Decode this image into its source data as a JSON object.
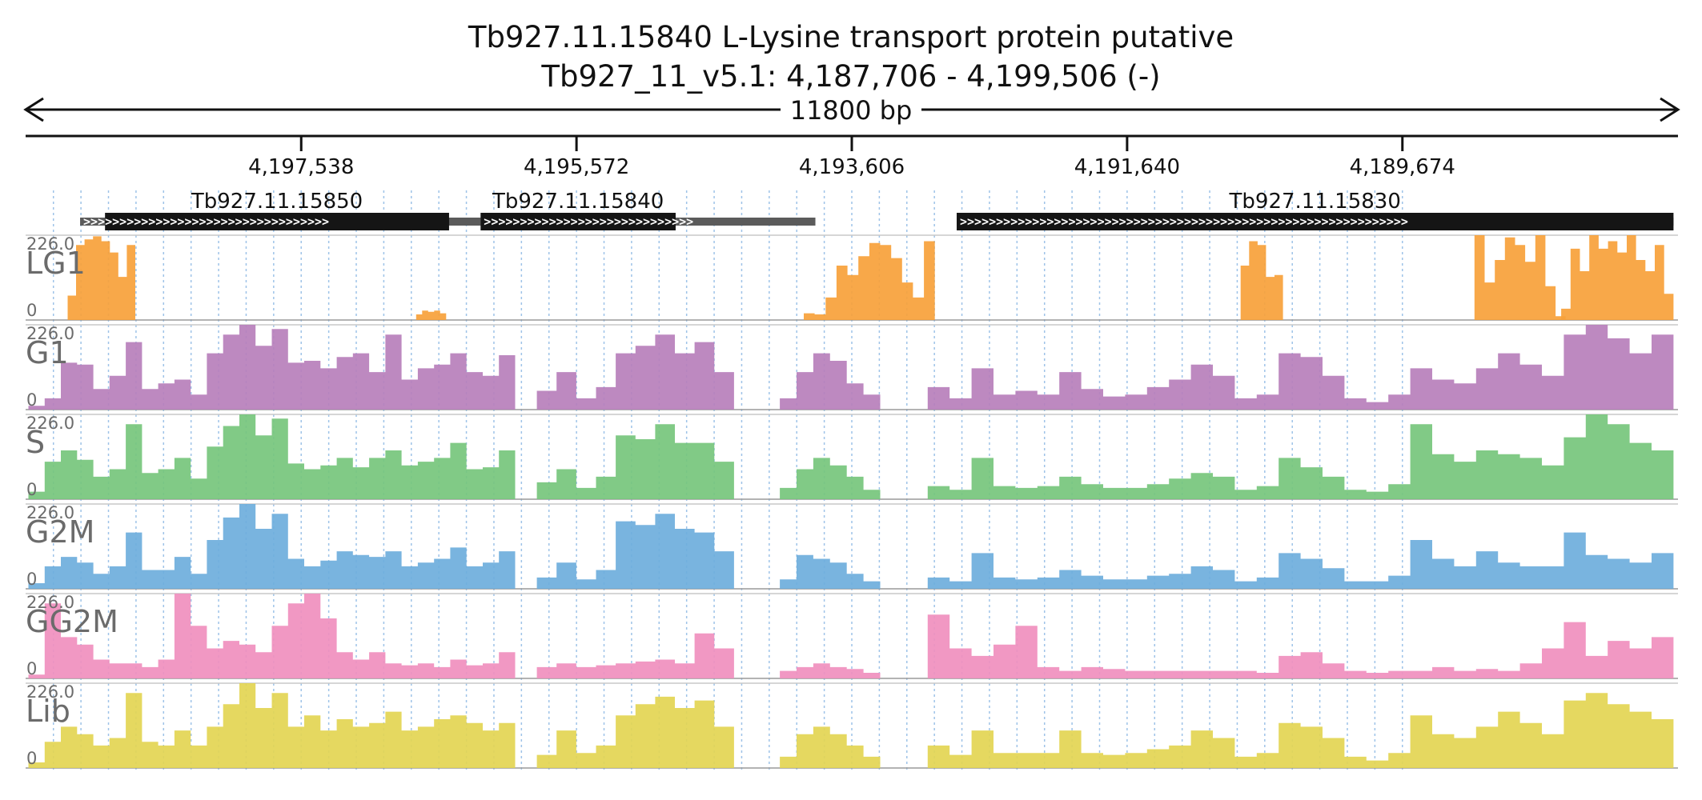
{
  "chart_data": {
    "type": "area",
    "title": "Tb927.11.15840  L-Lysine transport protein  putative",
    "subtitle": "Tb927_11_v5.1: 4,187,706 - 4,199,506 (-)",
    "span_label": "11800 bp",
    "region": {
      "start": 4187706,
      "end": 4199506,
      "strand": "-"
    },
    "x_ticks": [
      {
        "pos": 4197538,
        "label": "4,197,538"
      },
      {
        "pos": 4195572,
        "label": "4,195,572"
      },
      {
        "pos": 4193606,
        "label": "4,193,606"
      },
      {
        "pos": 4191640,
        "label": "4,191,640"
      },
      {
        "pos": 4189674,
        "label": "4,189,674"
      }
    ],
    "genes": [
      {
        "name": "Tb927.11.15850",
        "start": 4199117,
        "end": 4196257,
        "cds_start": 4198939,
        "cds_end": 4196482
      },
      {
        "name": "Tb927.11.15840",
        "start": 4196257,
        "end": 4193866,
        "cds_start": 4196257,
        "cds_end": 4194864
      },
      {
        "name": "Tb927.11.15830",
        "start": 4192857,
        "end": 4187738,
        "cds_start": 4192857,
        "cds_end": 4187738
      }
    ],
    "ymax_label": "226.0",
    "ymin_label": "0",
    "ylim": [
      0,
      226
    ],
    "tracks": [
      {
        "name": "LG1",
        "color": "#f7a13a",
        "segments": [
          {
            "start": 4199206,
            "end": 4198723,
            "shape": [
              65,
              200,
              215,
              223,
              210,
              180,
              115,
              200
            ]
          },
          {
            "start": 4196717,
            "end": 4196503,
            "shape": [
              15,
              25,
              22,
              25,
              18
            ]
          },
          {
            "start": 4193949,
            "end": 4193013,
            "shape": [
              18,
              15,
              60,
              145,
              120,
              170,
              205,
              200,
              165,
              100,
              60,
              210
            ]
          },
          {
            "start": 4190829,
            "end": 4190527,
            "shape": [
              145,
              210,
              200,
              115,
              120
            ]
          },
          {
            "start": 4189159,
            "end": 4188508,
            "shape": [
              226,
              100,
              160,
              220,
              200,
              155,
              226,
              90,
              10
            ]
          },
          {
            "start": 4188540,
            "end": 4187738,
            "shape": [
              30,
              190,
              130,
              226,
              190,
              210,
              180,
              226,
              160,
              130,
              200,
              70
            ]
          }
        ]
      },
      {
        "name": "G1",
        "color": "#b77fbb",
        "segments": [
          {
            "start": 4199486,
            "end": 4196010,
            "shape": [
              10,
              30,
              125,
              120,
              55,
              90,
              180,
              55,
              70,
              80,
              40,
              150,
              200,
              226,
              170,
              215,
              125,
              130,
              110,
              140,
              150,
              100,
              200,
              80,
              110,
              120,
              150,
              100,
              90,
              145
            ]
          },
          {
            "start": 4195855,
            "end": 4194447,
            "shape": [
              50,
              100,
              30,
              60,
              150,
              170,
              200,
              150,
              180,
              100
            ]
          },
          {
            "start": 4194120,
            "end": 4193403,
            "shape": [
              30,
              100,
              150,
              130,
              70,
              40
            ]
          },
          {
            "start": 4193064,
            "end": 4187738,
            "shape": [
              60,
              30,
              110,
              40,
              50,
              40,
              100,
              55,
              35,
              40,
              60,
              80,
              120,
              90,
              30,
              40,
              150,
              140,
              90,
              30,
              20,
              40,
              110,
              80,
              70,
              110,
              150,
              120,
              90,
              200,
              226,
              190,
              150,
              200
            ]
          }
        ]
      },
      {
        "name": "S",
        "color": "#76c67c",
        "segments": [
          {
            "start": 4199486,
            "end": 4196010,
            "shape": [
              20,
              100,
              130,
              105,
              60,
              80,
              200,
              70,
              80,
              110,
              55,
              140,
              195,
              226,
              170,
              215,
              95,
              80,
              90,
              110,
              85,
              110,
              130,
              90,
              100,
              110,
              150,
              80,
              85,
              130
            ]
          },
          {
            "start": 4195855,
            "end": 4194447,
            "shape": [
              45,
              80,
              30,
              60,
              170,
              160,
              200,
              150,
              150,
              100
            ]
          },
          {
            "start": 4194120,
            "end": 4193403,
            "shape": [
              30,
              80,
              110,
              90,
              60,
              25
            ]
          },
          {
            "start": 4193064,
            "end": 4187738,
            "shape": [
              35,
              25,
              110,
              35,
              30,
              35,
              60,
              40,
              30,
              30,
              40,
              55,
              70,
              60,
              25,
              35,
              110,
              85,
              60,
              25,
              20,
              40,
              200,
              120,
              100,
              130,
              120,
              110,
              90,
              165,
              226,
              200,
              150,
              130
            ]
          }
        ]
      },
      {
        "name": "G2M",
        "color": "#6eaedc",
        "segments": [
          {
            "start": 4199486,
            "end": 4196010,
            "shape": [
              15,
              60,
              85,
              70,
              40,
              60,
              150,
              50,
              50,
              85,
              40,
              130,
              190,
              226,
              160,
              200,
              80,
              60,
              75,
              100,
              90,
              85,
              100,
              60,
              70,
              80,
              110,
              60,
              70,
              100
            ]
          },
          {
            "start": 4195855,
            "end": 4194447,
            "shape": [
              30,
              70,
              25,
              50,
              180,
              170,
              200,
              160,
              150,
              100
            ]
          },
          {
            "start": 4194120,
            "end": 4193403,
            "shape": [
              25,
              90,
              80,
              70,
              40,
              20
            ]
          },
          {
            "start": 4193064,
            "end": 4187738,
            "shape": [
              30,
              20,
              95,
              30,
              25,
              30,
              50,
              35,
              25,
              25,
              35,
              40,
              60,
              50,
              20,
              30,
              95,
              80,
              55,
              20,
              20,
              35,
              130,
              80,
              60,
              100,
              70,
              60,
              60,
              150,
              90,
              80,
              70,
              95
            ]
          }
        ]
      },
      {
        "name": "GG2M",
        "color": "#f08fbe",
        "segments": [
          {
            "start": 4199486,
            "end": 4196010,
            "shape": [
              10,
              200,
              110,
              90,
              50,
              40,
              40,
              30,
              50,
              226,
              140,
              80,
              100,
              90,
              70,
              140,
              200,
              226,
              160,
              70,
              50,
              70,
              40,
              35,
              40,
              30,
              50,
              35,
              40,
              70
            ]
          },
          {
            "start": 4195855,
            "end": 4194447,
            "shape": [
              30,
              40,
              30,
              35,
              40,
              45,
              50,
              40,
              120,
              80
            ]
          },
          {
            "start": 4194120,
            "end": 4193403,
            "shape": [
              20,
              30,
              40,
              30,
              25,
              15
            ]
          },
          {
            "start": 4193064,
            "end": 4187738,
            "shape": [
              170,
              80,
              60,
              90,
              140,
              30,
              20,
              30,
              25,
              20,
              20,
              20,
              20,
              20,
              20,
              15,
              60,
              70,
              40,
              20,
              15,
              20,
              20,
              30,
              20,
              25,
              20,
              40,
              80,
              150,
              60,
              100,
              80,
              110
            ]
          }
        ]
      },
      {
        "name": "Lib",
        "color": "#e3d552",
        "segments": [
          {
            "start": 4199486,
            "end": 4196010,
            "shape": [
              15,
              70,
              110,
              90,
              60,
              80,
              200,
              70,
              60,
              100,
              60,
              110,
              170,
              226,
              160,
              200,
              110,
              140,
              100,
              130,
              110,
              120,
              150,
              100,
              110,
              130,
              140,
              120,
              100,
              120
            ]
          },
          {
            "start": 4195855,
            "end": 4194447,
            "shape": [
              35,
              100,
              40,
              60,
              140,
              170,
              190,
              160,
              180,
              110
            ]
          },
          {
            "start": 4194120,
            "end": 4193403,
            "shape": [
              30,
              90,
              110,
              90,
              60,
              30
            ]
          },
          {
            "start": 4193064,
            "end": 4187738,
            "shape": [
              60,
              35,
              100,
              40,
              40,
              40,
              100,
              40,
              35,
              40,
              50,
              60,
              100,
              80,
              30,
              40,
              120,
              110,
              80,
              30,
              20,
              40,
              140,
              90,
              80,
              110,
              150,
              120,
              90,
              180,
              200,
              170,
              150,
              130
            ]
          }
        ]
      }
    ]
  }
}
